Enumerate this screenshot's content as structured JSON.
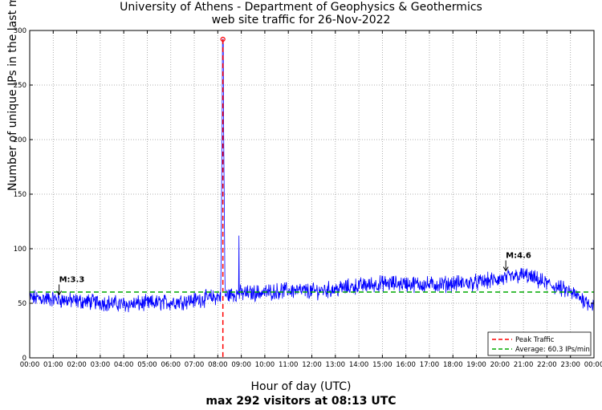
{
  "chart_data": {
    "type": "line",
    "title": "University of Athens - Department of Geophysics & Geothermics",
    "subtitle": "web site traffic for 26-Nov-2022",
    "xlabel": "Hour of day (UTC)",
    "footer": "max 292 visitors at 08:13 UTC",
    "ylabel": "Number of unique IPs in the last minute",
    "xlim_hours": [
      0,
      24
    ],
    "ylim": [
      0,
      300
    ],
    "x_ticks": [
      "00:00",
      "01:00",
      "02:00",
      "03:00",
      "04:00",
      "05:00",
      "06:00",
      "07:00",
      "08:00",
      "09:00",
      "10:00",
      "11:00",
      "12:00",
      "13:00",
      "14:00",
      "15:00",
      "16:00",
      "17:00",
      "18:00",
      "19:00",
      "20:00",
      "21:00",
      "22:00",
      "23:00",
      "00:00"
    ],
    "y_ticks": [
      0,
      50,
      100,
      150,
      200,
      250,
      300
    ],
    "grid": true,
    "series": [
      {
        "name": "",
        "color": "#0000ff",
        "hourly_approx": [
          {
            "x": 0.0,
            "y": 55
          },
          {
            "x": 1.0,
            "y": 54
          },
          {
            "x": 2.0,
            "y": 52
          },
          {
            "x": 3.0,
            "y": 51
          },
          {
            "x": 4.0,
            "y": 49
          },
          {
            "x": 5.0,
            "y": 50
          },
          {
            "x": 6.0,
            "y": 51
          },
          {
            "x": 7.0,
            "y": 53
          },
          {
            "x": 8.0,
            "y": 56
          },
          {
            "x": 8.2167,
            "y": 292
          },
          {
            "x": 8.5,
            "y": 58
          },
          {
            "x": 8.9,
            "y": 112
          },
          {
            "x": 9.0,
            "y": 59
          },
          {
            "x": 10.0,
            "y": 60
          },
          {
            "x": 11.0,
            "y": 62
          },
          {
            "x": 12.0,
            "y": 61
          },
          {
            "x": 13.0,
            "y": 63
          },
          {
            "x": 14.0,
            "y": 66
          },
          {
            "x": 15.0,
            "y": 68
          },
          {
            "x": 16.0,
            "y": 68
          },
          {
            "x": 17.0,
            "y": 67
          },
          {
            "x": 18.0,
            "y": 68
          },
          {
            "x": 19.0,
            "y": 69
          },
          {
            "x": 20.0,
            "y": 72
          },
          {
            "x": 21.0,
            "y": 76
          },
          {
            "x": 22.0,
            "y": 68
          },
          {
            "x": 23.0,
            "y": 60
          },
          {
            "x": 24.0,
            "y": 48
          }
        ]
      }
    ],
    "peak": {
      "x": 8.2167,
      "y": 292,
      "label": "Peak Traffic",
      "color": "#ff0000"
    },
    "average": {
      "y": 60.3,
      "label": "Average: 60.3 IPs/min",
      "color": "#00aa00"
    },
    "annotations": [
      {
        "x": 1.25,
        "y": 57,
        "text": "M:3.3"
      },
      {
        "x": 20.25,
        "y": 79,
        "text": "M:4.6"
      }
    ],
    "legend_position": "bottom-right"
  }
}
